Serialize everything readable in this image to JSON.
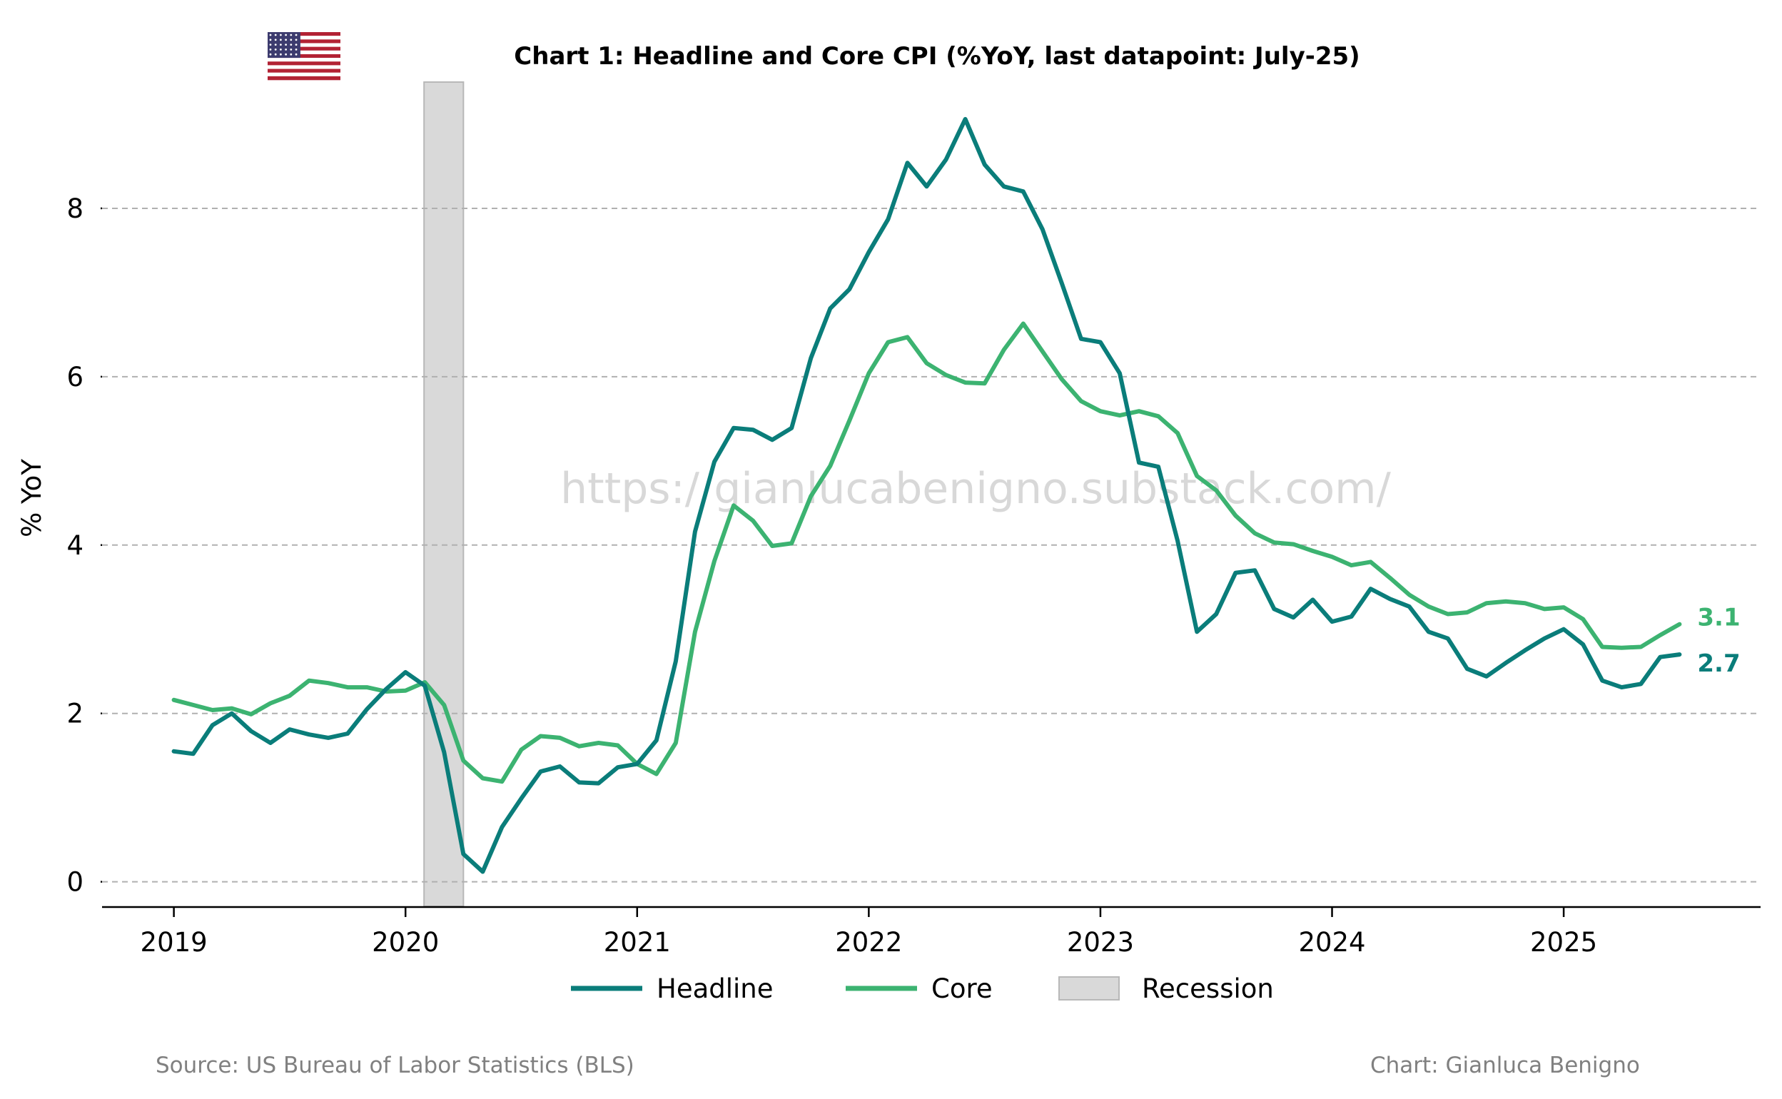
{
  "chart_data": {
    "type": "line",
    "title": "Chart 1: Headline and Core CPI (%YoY, last datapoint: July-25)",
    "ylabel": "% YoY",
    "xlabel": "",
    "ylim": [
      -0.3,
      9.5
    ],
    "yticks": [
      0,
      2,
      4,
      6,
      8
    ],
    "xticks": [
      "2019",
      "2020",
      "2021",
      "2022",
      "2023",
      "2024",
      "2025"
    ],
    "xlim": [
      2018.69,
      2025.85
    ],
    "start": 2019.0,
    "step_months": 1,
    "grid": "horizontal dashed",
    "legend_position": "bottom-center",
    "series": [
      {
        "name": "Headline",
        "color": "#0a7d7a",
        "values": [
          1.55,
          1.52,
          1.86,
          2.0,
          1.79,
          1.65,
          1.81,
          1.75,
          1.71,
          1.76,
          2.05,
          2.29,
          2.49,
          2.33,
          1.54,
          0.33,
          0.12,
          0.65,
          0.99,
          1.31,
          1.37,
          1.18,
          1.17,
          1.36,
          1.4,
          1.68,
          2.62,
          4.16,
          4.99,
          5.39,
          5.37,
          5.25,
          5.39,
          6.22,
          6.81,
          7.04,
          7.48,
          7.87,
          8.54,
          8.26,
          8.58,
          9.06,
          8.52,
          8.26,
          8.2,
          7.75,
          7.11,
          6.45,
          6.41,
          6.04,
          4.98,
          4.93,
          4.05,
          2.97,
          3.18,
          3.67,
          3.7,
          3.24,
          3.14,
          3.35,
          3.09,
          3.15,
          3.48,
          3.36,
          3.27,
          2.97,
          2.89,
          2.53,
          2.44,
          2.6,
          2.75,
          2.89,
          3.0,
          2.82,
          2.39,
          2.31,
          2.35,
          2.67,
          2.7
        ]
      },
      {
        "name": "Core",
        "color": "#3cb371",
        "values": [
          2.16,
          2.1,
          2.04,
          2.06,
          1.99,
          2.12,
          2.21,
          2.39,
          2.36,
          2.31,
          2.31,
          2.26,
          2.27,
          2.37,
          2.1,
          1.44,
          1.23,
          1.19,
          1.57,
          1.73,
          1.71,
          1.61,
          1.65,
          1.62,
          1.4,
          1.28,
          1.65,
          2.97,
          3.81,
          4.47,
          4.29,
          3.99,
          4.02,
          4.58,
          4.94,
          5.48,
          6.04,
          6.41,
          6.47,
          6.16,
          6.02,
          5.93,
          5.92,
          6.32,
          6.63,
          6.3,
          5.97,
          5.71,
          5.59,
          5.54,
          5.59,
          5.53,
          5.33,
          4.82,
          4.65,
          4.35,
          4.14,
          4.03,
          4.01,
          3.93,
          3.86,
          3.76,
          3.8,
          3.61,
          3.41,
          3.27,
          3.18,
          3.2,
          3.31,
          3.33,
          3.31,
          3.24,
          3.26,
          3.12,
          2.79,
          2.78,
          2.79,
          2.93,
          3.06
        ]
      }
    ],
    "recession": {
      "label": "Recession",
      "start": 2020.08,
      "end": 2020.25
    },
    "end_labels": [
      {
        "series": "Core",
        "text": "3.1"
      },
      {
        "series": "Headline",
        "text": "2.7"
      }
    ]
  },
  "legend": {
    "headline": "Headline",
    "core": "Core",
    "recession": "Recession"
  },
  "watermark": "https://gianlucabenigno.substack.com/",
  "footer": {
    "source": "Source: US Bureau of Labor Statistics (BLS)",
    "credit": "Chart: Gianluca Benigno"
  },
  "flag_icon": "us-flag-icon",
  "colors": {
    "headline": "#0a7d7a",
    "core": "#3cb371",
    "recession": "#d9d9d9",
    "grid": "#b0b0b0"
  }
}
